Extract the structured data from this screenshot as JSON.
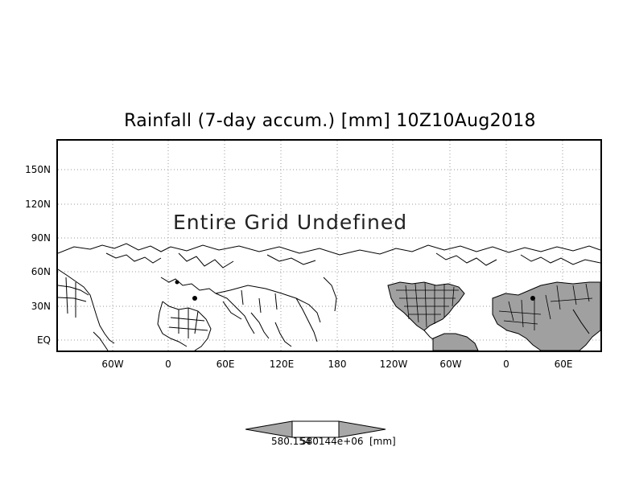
{
  "title": "Rainfall (7-day accum.) [mm] 10Z10Aug2018",
  "message": "Entire Grid Undefined",
  "y_axis_ticks": [
    "150N",
    "120N",
    "90N",
    "60N",
    "30N",
    "EQ"
  ],
  "x_axis_ticks": [
    "60W",
    "0",
    "60E",
    "120E",
    "180",
    "120W",
    "60W",
    "0",
    "60E"
  ],
  "colorbar": {
    "left_label": "580.154",
    "right_label": "580144e+06",
    "unit": "[mm]"
  },
  "colors": {
    "land_fill": "#a0a0a0",
    "coastline": "#000000",
    "grid": "#9a9a9a",
    "colorbar_fill": "#a8a8a8"
  }
}
